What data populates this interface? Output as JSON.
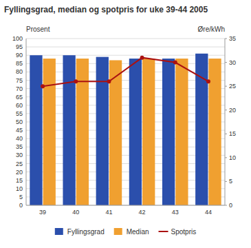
{
  "chart_data": {
    "type": "bar",
    "title": "Fyllingsgrad, median og spotpris for uke 39-44 2005",
    "categories": [
      39,
      40,
      41,
      42,
      43,
      44
    ],
    "series": [
      {
        "name": "Fyllingsgrad",
        "color": "#2b4fac",
        "values": [
          90,
          90,
          89,
          88,
          88,
          91
        ]
      },
      {
        "name": "Median",
        "color": "#f0a030",
        "values": [
          88,
          88,
          87,
          88,
          88,
          88
        ]
      },
      {
        "name": "Spotpris",
        "color": "#aa1111",
        "values": [
          25,
          26,
          26,
          31,
          30,
          26
        ],
        "axis": "y2",
        "type": "line",
        "marker": "circle"
      }
    ],
    "ylabel": "Prosent",
    "y2label": "Øre/kWh",
    "ylim": [
      0,
      100
    ],
    "yticks": [
      0,
      5,
      10,
      15,
      20,
      25,
      30,
      35,
      40,
      45,
      50,
      55,
      60,
      65,
      70,
      75,
      80,
      85,
      90,
      95,
      100
    ],
    "y2lim": [
      0,
      35
    ],
    "y2ticks": [
      0,
      5,
      10,
      15,
      20,
      25,
      30,
      35
    ],
    "grid": true,
    "legend": "bottom"
  }
}
